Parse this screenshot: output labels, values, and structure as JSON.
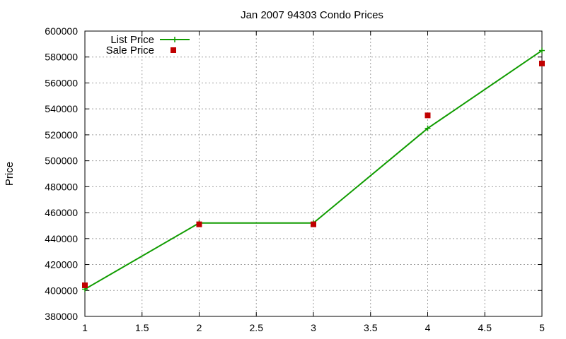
{
  "chart_data": {
    "type": "line",
    "title": "Jan 2007 94303 Condo Prices",
    "xlabel": "",
    "ylabel": "Price",
    "xlim": [
      1,
      5
    ],
    "ylim": [
      380000,
      600000
    ],
    "xticks": [
      "1",
      "1.5",
      "2",
      "2.5",
      "3",
      "3.5",
      "4",
      "4.5",
      "5"
    ],
    "yticks": [
      "380000",
      "400000",
      "420000",
      "440000",
      "460000",
      "480000",
      "500000",
      "520000",
      "540000",
      "560000",
      "580000",
      "600000"
    ],
    "grid": true,
    "legend_position": "top-left",
    "series": [
      {
        "name": "List Price",
        "style": "line-with-plus-markers",
        "color": "#109c00",
        "x": [
          1,
          2,
          3,
          4,
          5
        ],
        "y": [
          401000,
          452000,
          452000,
          525000,
          585000
        ]
      },
      {
        "name": "Sale Price",
        "style": "square-markers",
        "color": "#c00000",
        "x": [
          1,
          2,
          3,
          4,
          5
        ],
        "y": [
          404000,
          451000,
          451000,
          535000,
          575000
        ]
      }
    ]
  }
}
